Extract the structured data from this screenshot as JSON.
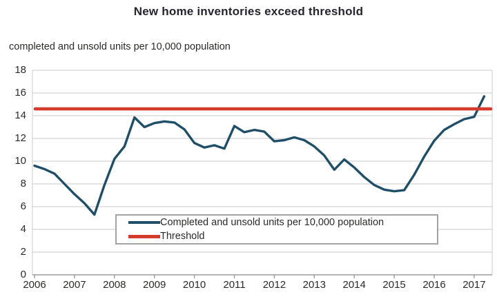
{
  "chart_data": {
    "type": "line",
    "title": "New home inventories exceed threshold",
    "subtitle": "completed and unsold units per 10,000 population",
    "x_tick_labels": [
      "2006",
      "2007",
      "2008",
      "2009",
      "2010",
      "2011",
      "2012",
      "2013",
      "2014",
      "2015",
      "2016",
      "2017"
    ],
    "y_ticks": [
      0,
      2,
      4,
      6,
      8,
      10,
      12,
      14,
      16,
      18
    ],
    "ylim": [
      0,
      18
    ],
    "grid": "horizontal",
    "legend_position": "inside-bottom-center",
    "colors": {
      "series_line": "#1e4e68",
      "threshold_line": "#d43b2a",
      "gridline": "#d4d4d4",
      "axis": "#9b9b9b",
      "text": "#2a2a28",
      "legend_border": "#a3a3a3"
    },
    "series": [
      {
        "name": "Completed and unsold units per 10,000 population",
        "type": "line",
        "color": "#1e4e68",
        "x": [
          2006.0,
          2006.25,
          2006.5,
          2006.75,
          2007.0,
          2007.25,
          2007.5,
          2007.75,
          2008.0,
          2008.25,
          2008.5,
          2008.75,
          2009.0,
          2009.25,
          2009.5,
          2009.75,
          2010.0,
          2010.25,
          2010.5,
          2010.75,
          2011.0,
          2011.25,
          2011.5,
          2011.75,
          2012.0,
          2012.25,
          2012.5,
          2012.75,
          2013.0,
          2013.25,
          2013.5,
          2013.75,
          2014.0,
          2014.25,
          2014.5,
          2014.75,
          2015.0,
          2015.25,
          2015.5,
          2015.75,
          2016.0,
          2016.25,
          2016.5,
          2016.75,
          2017.0,
          2017.25
        ],
        "values": [
          9.6,
          9.3,
          8.9,
          8.0,
          7.1,
          6.3,
          5.3,
          7.9,
          10.2,
          11.3,
          13.85,
          13.0,
          13.35,
          13.5,
          13.4,
          12.8,
          11.6,
          11.2,
          11.4,
          11.1,
          13.1,
          12.55,
          12.75,
          12.6,
          11.75,
          11.85,
          12.1,
          11.85,
          11.3,
          10.5,
          9.25,
          10.15,
          9.45,
          8.6,
          7.9,
          7.5,
          7.35,
          7.45,
          8.8,
          10.4,
          11.8,
          12.75,
          13.25,
          13.7,
          13.9,
          15.7
        ]
      },
      {
        "name": "Threshold",
        "type": "hline",
        "color": "#d43b2a",
        "value": 14.6
      }
    ]
  }
}
